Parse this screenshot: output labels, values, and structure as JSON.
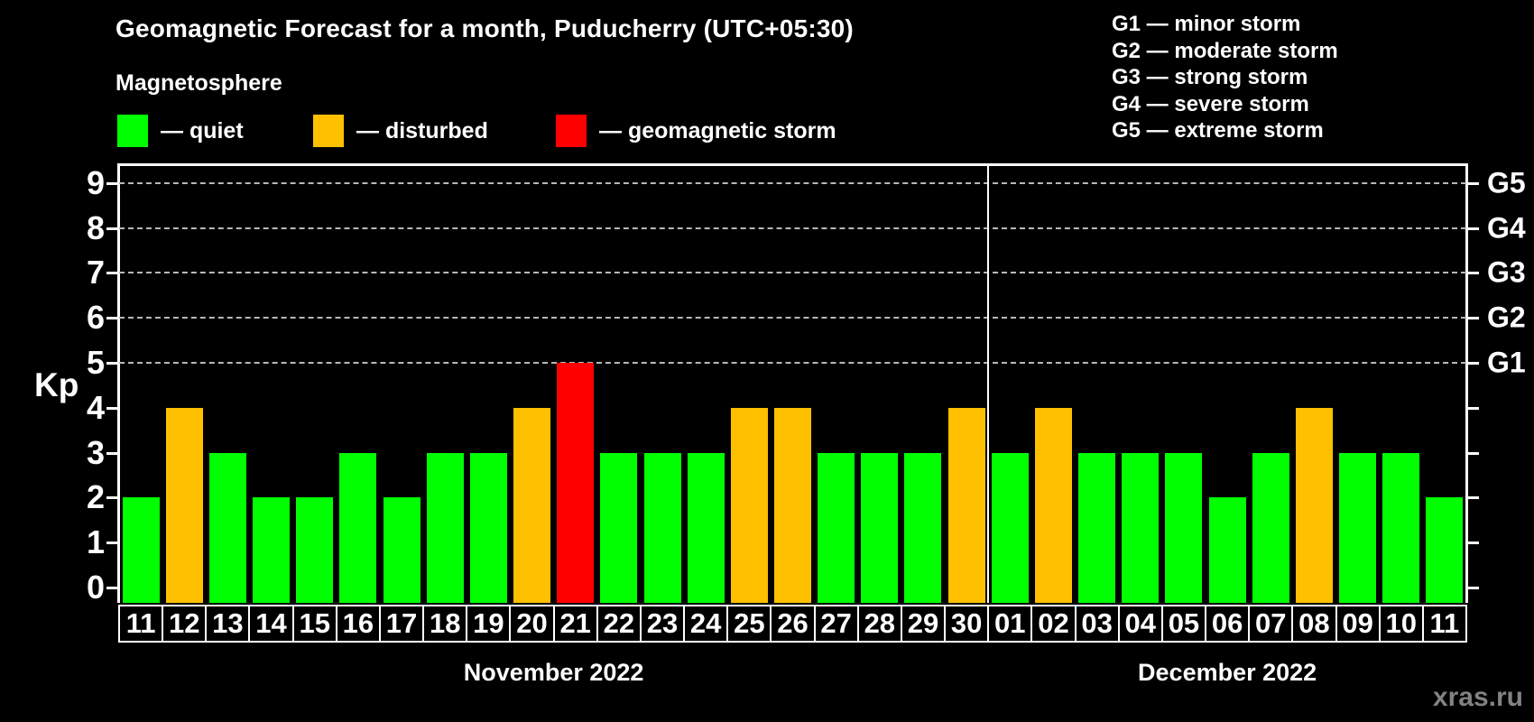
{
  "header": {
    "title": "Geomagnetic Forecast for a month, Puducherry (UTC+05:30)",
    "subtitle": "Magnetosphere"
  },
  "legend": {
    "quiet": {
      "label": "— quiet",
      "color": "#00ff00"
    },
    "disturbed": {
      "label": "— disturbed",
      "color": "#ffc000"
    },
    "storm": {
      "label": "— geomagnetic storm",
      "color": "#ff0000"
    }
  },
  "g_scale_legend": [
    "G1 — minor storm",
    "G2 — moderate storm",
    "G3 — strong storm",
    "G4 — severe storm",
    "G5 — extreme storm"
  ],
  "watermark": "xras.ru",
  "chart_data": {
    "type": "bar",
    "title": "Geomagnetic Forecast for a month, Puducherry (UTC+05:30)",
    "ylabel": "Kp",
    "ylim": [
      0,
      9
    ],
    "yticks": [
      0,
      1,
      2,
      3,
      4,
      5,
      6,
      7,
      8,
      9
    ],
    "gridlines_at": [
      5,
      6,
      7,
      8,
      9
    ],
    "grid_style": "horizontal dashed lines at Kp 5-9 only",
    "legend_position": "top-left",
    "right_axis_labels": [
      {
        "label": "G1",
        "kp": 5
      },
      {
        "label": "G2",
        "kp": 6
      },
      {
        "label": "G3",
        "kp": 7
      },
      {
        "label": "G4",
        "kp": 8
      },
      {
        "label": "G5",
        "kp": 9
      }
    ],
    "months": [
      {
        "label": "November 2022",
        "days": [
          {
            "day": "11",
            "kp": 2,
            "level": "quiet"
          },
          {
            "day": "12",
            "kp": 4,
            "level": "disturbed"
          },
          {
            "day": "13",
            "kp": 3,
            "level": "quiet"
          },
          {
            "day": "14",
            "kp": 2,
            "level": "quiet"
          },
          {
            "day": "15",
            "kp": 2,
            "level": "quiet"
          },
          {
            "day": "16",
            "kp": 3,
            "level": "quiet"
          },
          {
            "day": "17",
            "kp": 2,
            "level": "quiet"
          },
          {
            "day": "18",
            "kp": 3,
            "level": "quiet"
          },
          {
            "day": "19",
            "kp": 3,
            "level": "quiet"
          },
          {
            "day": "20",
            "kp": 4,
            "level": "disturbed"
          },
          {
            "day": "21",
            "kp": 5,
            "level": "storm"
          },
          {
            "day": "22",
            "kp": 3,
            "level": "quiet"
          },
          {
            "day": "23",
            "kp": 3,
            "level": "quiet"
          },
          {
            "day": "24",
            "kp": 3,
            "level": "quiet"
          },
          {
            "day": "25",
            "kp": 4,
            "level": "disturbed"
          },
          {
            "day": "26",
            "kp": 4,
            "level": "disturbed"
          },
          {
            "day": "27",
            "kp": 3,
            "level": "quiet"
          },
          {
            "day": "28",
            "kp": 3,
            "level": "quiet"
          },
          {
            "day": "29",
            "kp": 3,
            "level": "quiet"
          },
          {
            "day": "30",
            "kp": 4,
            "level": "disturbed"
          }
        ]
      },
      {
        "label": "December 2022",
        "days": [
          {
            "day": "01",
            "kp": 3,
            "level": "quiet"
          },
          {
            "day": "02",
            "kp": 4,
            "level": "disturbed"
          },
          {
            "day": "03",
            "kp": 3,
            "level": "quiet"
          },
          {
            "day": "04",
            "kp": 3,
            "level": "quiet"
          },
          {
            "day": "05",
            "kp": 3,
            "level": "quiet"
          },
          {
            "day": "06",
            "kp": 2,
            "level": "quiet"
          },
          {
            "day": "07",
            "kp": 3,
            "level": "quiet"
          },
          {
            "day": "08",
            "kp": 4,
            "level": "disturbed"
          },
          {
            "day": "09",
            "kp": 3,
            "level": "quiet"
          },
          {
            "day": "10",
            "kp": 3,
            "level": "quiet"
          },
          {
            "day": "11",
            "kp": 2,
            "level": "quiet"
          }
        ]
      }
    ]
  }
}
